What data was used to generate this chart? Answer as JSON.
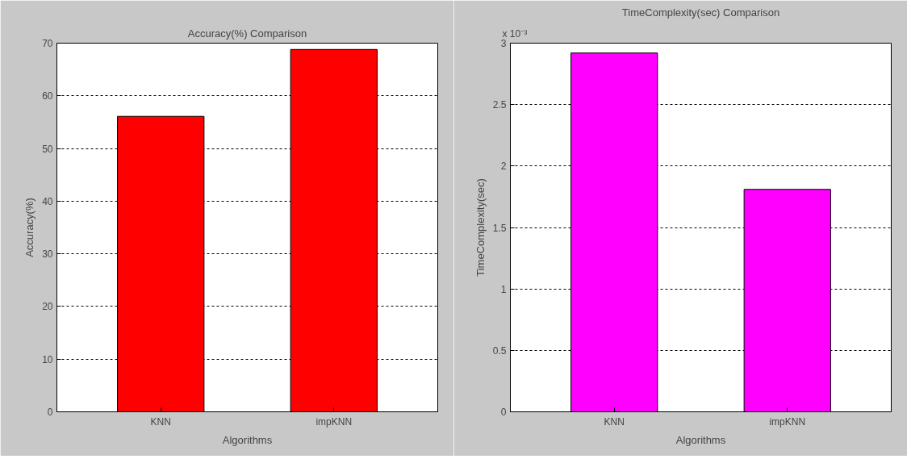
{
  "chart_data": [
    {
      "type": "bar",
      "title": "Accuracy(%) Comparison",
      "xlabel": "Algorithms",
      "ylabel": "Accuracy(%)",
      "categories": [
        "KNN",
        "impKNN"
      ],
      "values": [
        56.1,
        68.8
      ],
      "color": "#ff0000",
      "ylim": [
        0,
        70
      ],
      "yticks": [
        0,
        10,
        20,
        30,
        40,
        50,
        60,
        70
      ],
      "grid": "y"
    },
    {
      "type": "bar",
      "title": "TimeComplexity(sec) Comparison",
      "xlabel": "Algorithms",
      "ylabel": "TimeComplexity(sec)",
      "categories": [
        "KNN",
        "impKNN"
      ],
      "values": [
        2.92,
        1.81
      ],
      "color": "#ff00ff",
      "ylim": [
        0,
        3
      ],
      "yticks": [
        0,
        0.5,
        1,
        1.5,
        2,
        2.5,
        3
      ],
      "grid": "y",
      "annotations": [
        "x 10⁻³"
      ]
    }
  ]
}
